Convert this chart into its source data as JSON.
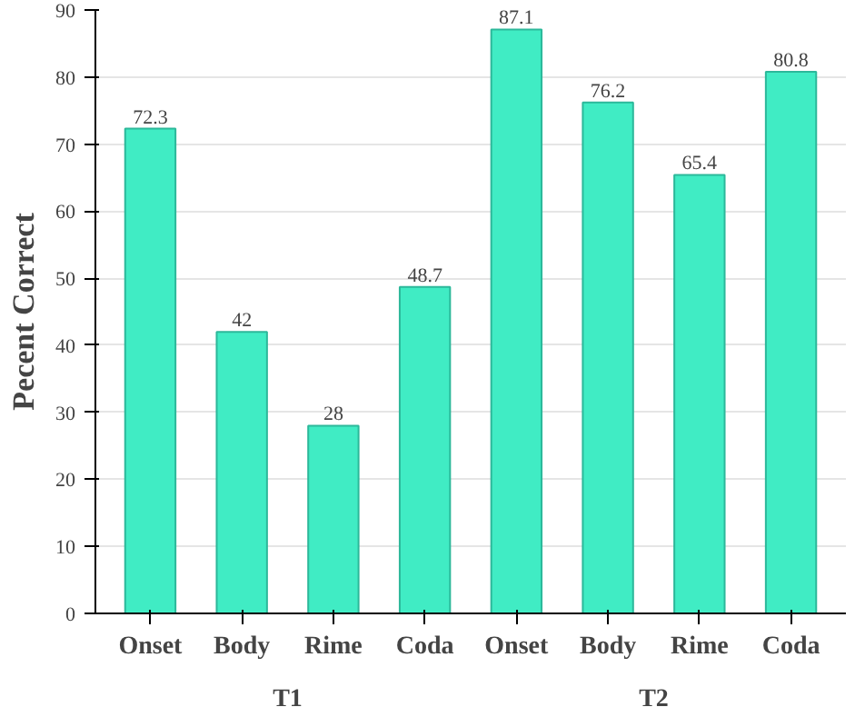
{
  "chart_data": {
    "type": "bar",
    "ylabel": "Pecent Correct",
    "categories": [
      "Onset",
      "Body",
      "Rime",
      "Coda",
      "Onset",
      "Body",
      "Rime",
      "Coda"
    ],
    "values": [
      72.3,
      42,
      28,
      48.7,
      87.1,
      76.2,
      65.4,
      80.8
    ],
    "color": "#40ecc4",
    "data_labels": true,
    "ylim": [
      0,
      90
    ],
    "yticks": [
      0,
      10,
      20,
      30,
      40,
      50,
      60,
      70,
      80,
      90
    ],
    "grid": "y",
    "annotations": [
      "T1",
      "T2"
    ]
  }
}
